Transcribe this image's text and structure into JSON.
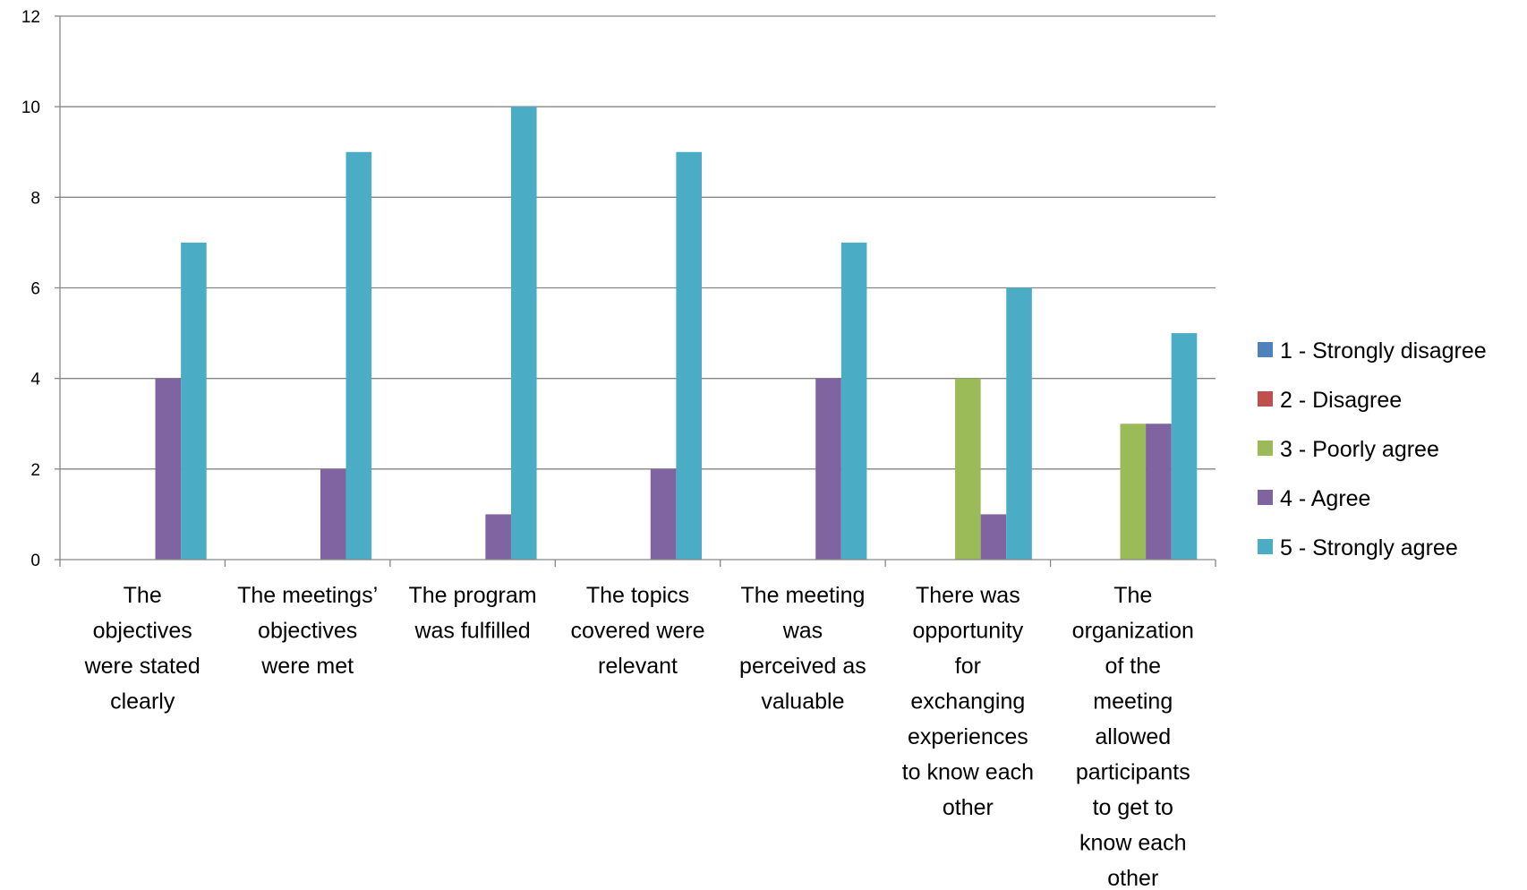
{
  "chart_data": {
    "type": "bar",
    "title": "",
    "xlabel": "",
    "ylabel": "",
    "ylim": [
      0,
      12
    ],
    "yticks": [
      0,
      2,
      4,
      6,
      8,
      10,
      12
    ],
    "grid": true,
    "legend_position": "right",
    "categories": [
      [
        "The",
        "objectives",
        "were stated",
        "clearly"
      ],
      [
        "The meetings’",
        "objectives",
        "were met"
      ],
      [
        "The program",
        "was fulfilled"
      ],
      [
        "The topics",
        "covered were",
        "relevant"
      ],
      [
        "The meeting",
        "was",
        "perceived as",
        "valuable"
      ],
      [
        "There was",
        "opportunity",
        "for",
        "exchanging",
        "experiences",
        "to know each",
        "other"
      ],
      [
        "The",
        "organization",
        "of the",
        "meeting",
        "allowed",
        "participants",
        "to get to",
        "know each",
        "other"
      ]
    ],
    "series": [
      {
        "name": "1 - Strongly disagree",
        "color": "#4F81BD",
        "values": [
          0,
          0,
          0,
          0,
          0,
          0,
          0
        ]
      },
      {
        "name": "2 - Disagree",
        "color": "#C0504D",
        "values": [
          0,
          0,
          0,
          0,
          0,
          0,
          0
        ]
      },
      {
        "name": "3 - Poorly agree",
        "color": "#9BBB59",
        "values": [
          0,
          0,
          0,
          0,
          0,
          4,
          3
        ]
      },
      {
        "name": "4 - Agree",
        "color": "#8064A2",
        "values": [
          4,
          2,
          1,
          2,
          4,
          1,
          3
        ]
      },
      {
        "name": "5 - Strongly agree",
        "color": "#4BACC6",
        "values": [
          7,
          9,
          10,
          9,
          7,
          6,
          5
        ]
      }
    ]
  }
}
